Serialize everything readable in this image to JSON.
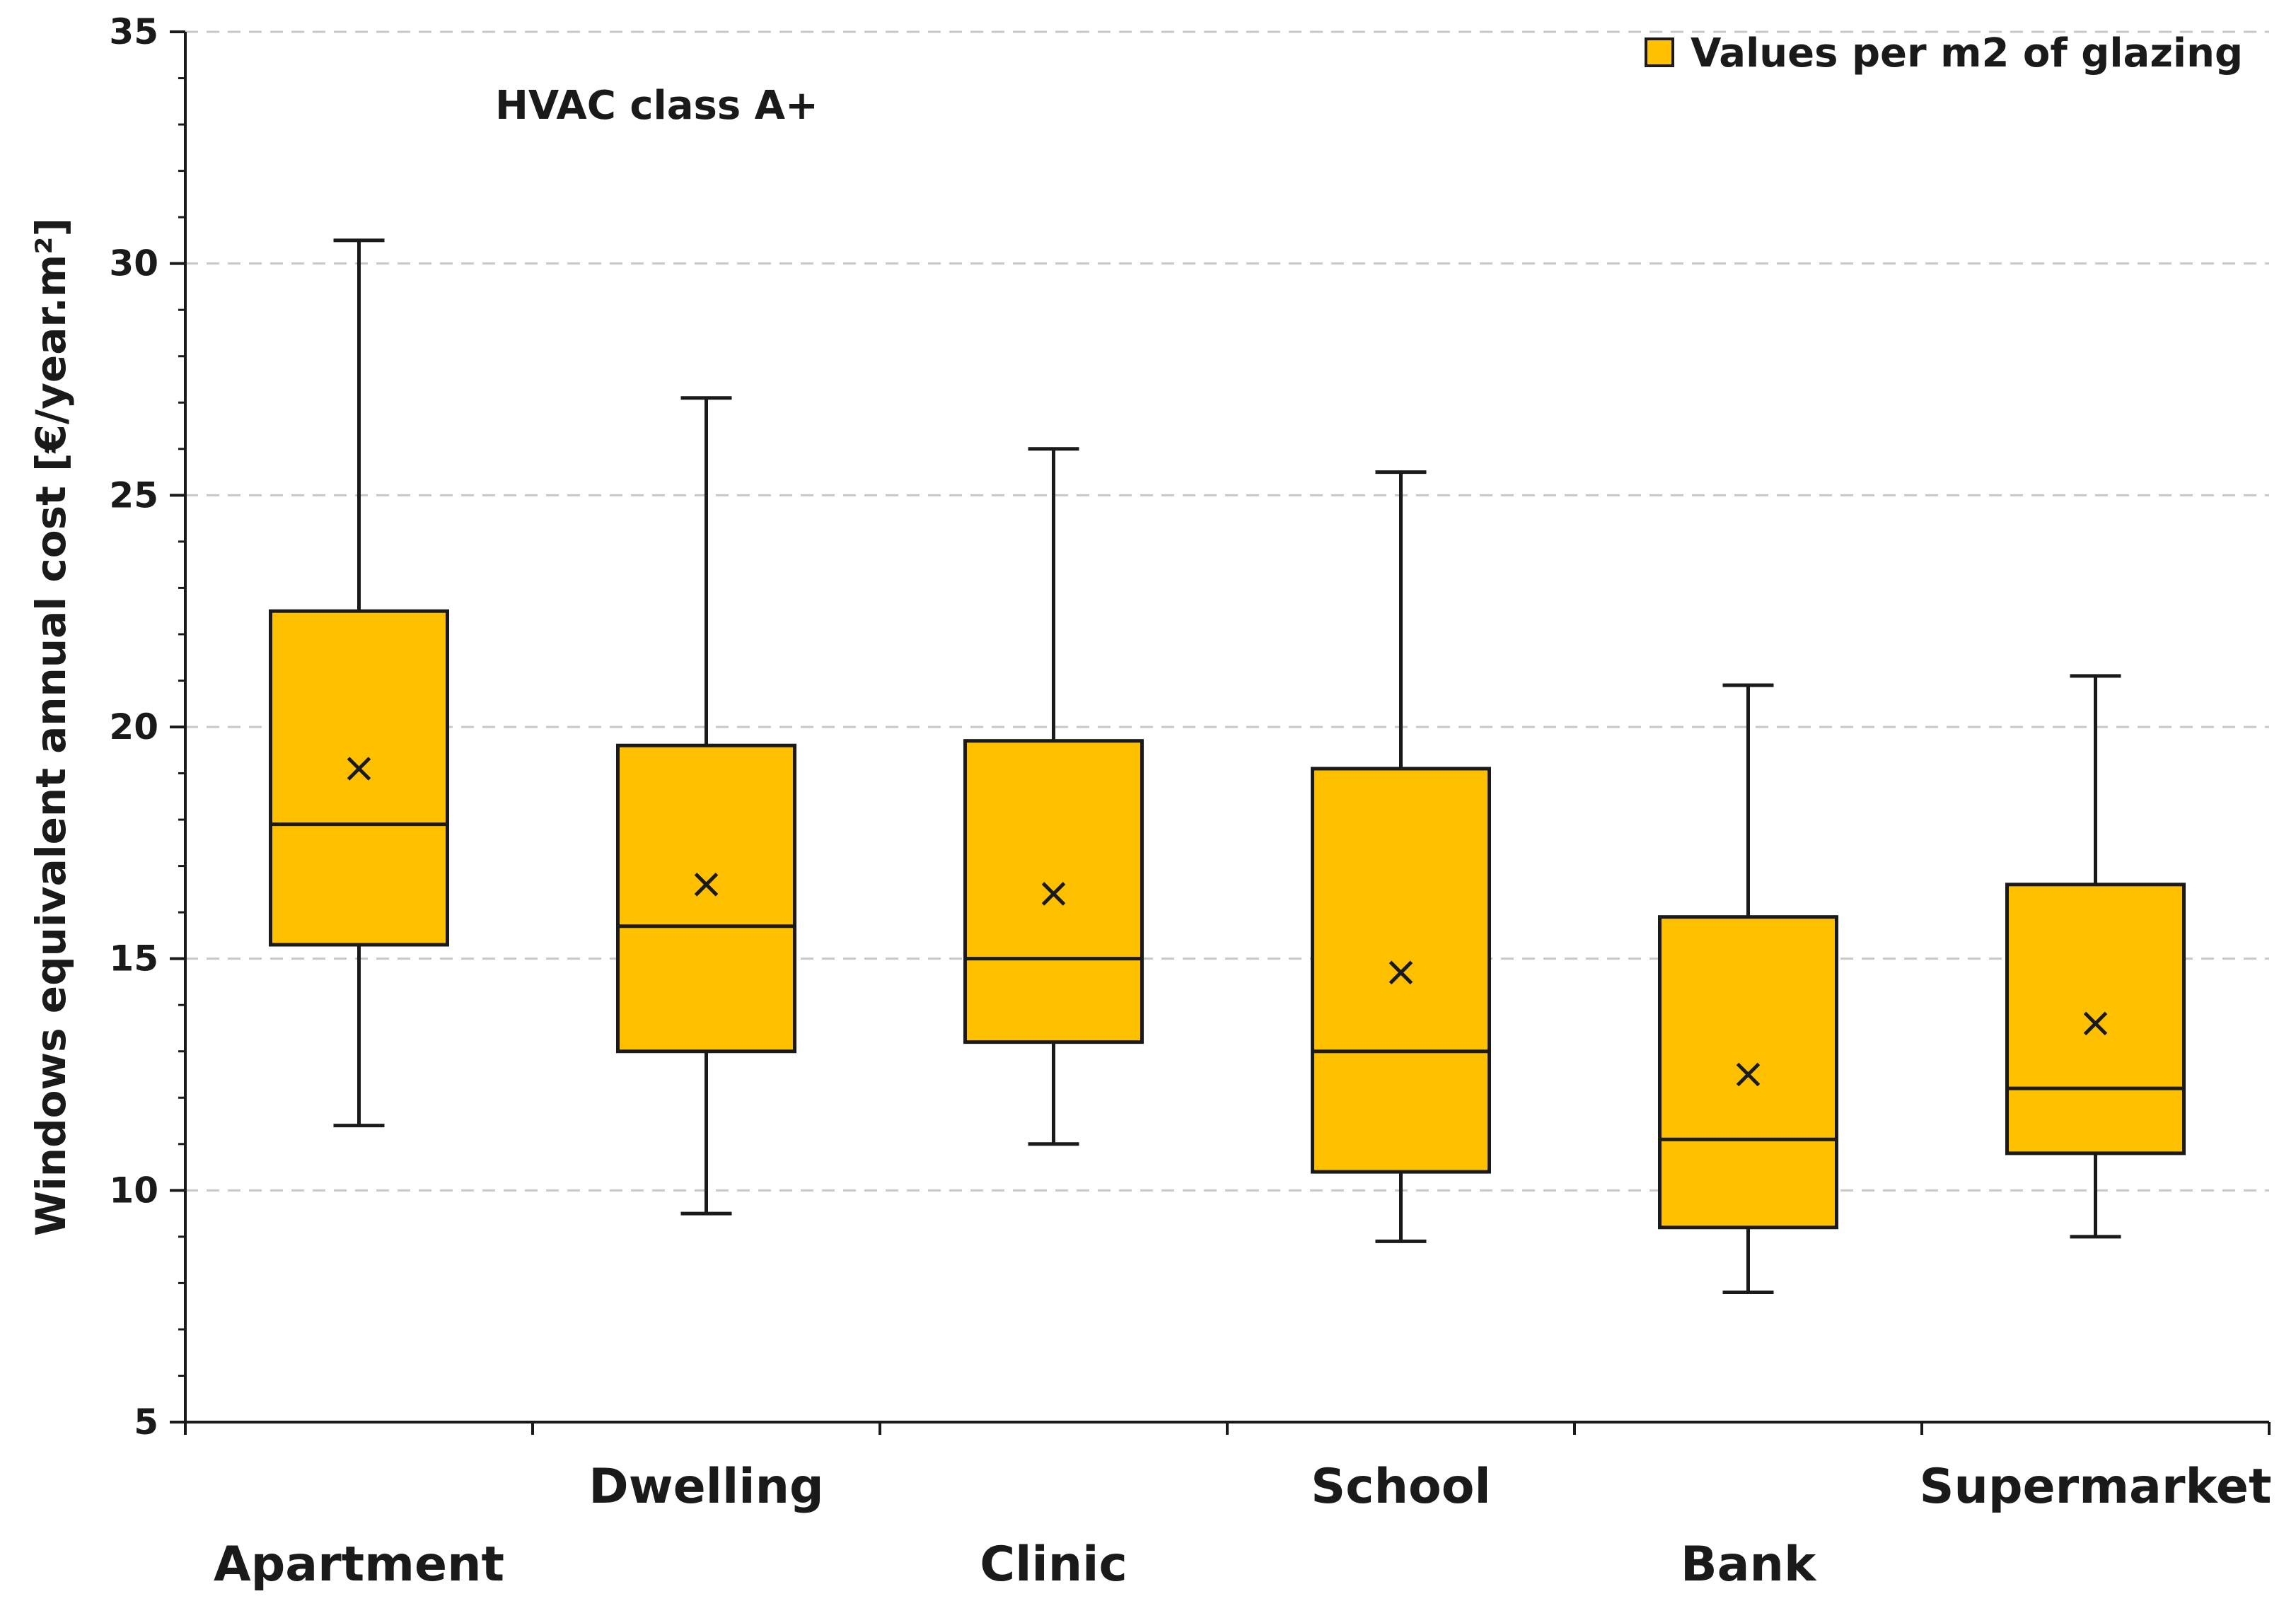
{
  "chart_data": {
    "type": "box",
    "categories": [
      "Apartment",
      "Dwelling",
      "Clinic",
      "School",
      "Bank",
      "Supermarket"
    ],
    "series": [
      {
        "name": "Values per m2 of glazing",
        "boxes": [
          {
            "category": "Apartment",
            "min": 11.4,
            "q1": 15.3,
            "median": 17.9,
            "q3": 22.5,
            "max": 30.5,
            "mean": 19.1
          },
          {
            "category": "Dwelling",
            "min": 9.5,
            "q1": 13.0,
            "median": 15.7,
            "q3": 19.6,
            "max": 27.1,
            "mean": 16.6
          },
          {
            "category": "Clinic",
            "min": 11.0,
            "q1": 13.2,
            "median": 15.0,
            "q3": 19.7,
            "max": 26.0,
            "mean": 16.4
          },
          {
            "category": "School",
            "min": 8.9,
            "q1": 10.4,
            "median": 13.0,
            "q3": 19.1,
            "max": 25.5,
            "mean": 14.7
          },
          {
            "category": "Bank",
            "min": 7.8,
            "q1": 9.2,
            "median": 11.1,
            "q3": 15.9,
            "max": 20.9,
            "mean": 12.5
          },
          {
            "category": "Supermarket",
            "min": 9.0,
            "q1": 10.8,
            "median": 12.2,
            "q3": 16.6,
            "max": 21.1,
            "mean": 13.6
          }
        ]
      }
    ],
    "ylabel": "Windows equivalent annual cost  [€/year.m²]",
    "xlabel": "",
    "ylim": [
      5,
      35
    ],
    "yticks": [
      5,
      10,
      15,
      20,
      25,
      30,
      35
    ],
    "minor_tick_step": 1,
    "grid": {
      "y_major": true,
      "style": "dashed"
    },
    "annotation": "HVAC class A+",
    "legend": {
      "position": "top-right",
      "label": "Values per m2 of glazing"
    },
    "colors": {
      "box_fill": "#FFC000",
      "stroke": "#1a1a1a",
      "grid": "#c8c8c8"
    }
  }
}
